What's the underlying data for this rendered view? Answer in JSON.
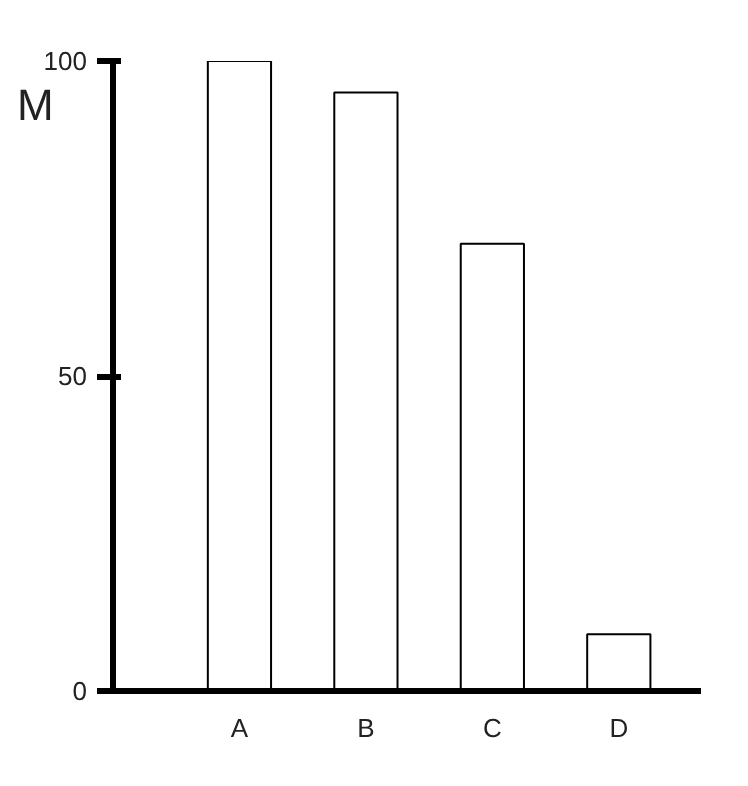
{
  "chart_data": {
    "type": "bar",
    "ylabel": "M",
    "categories": [
      "A",
      "B",
      "C",
      "D"
    ],
    "values": [
      100,
      95,
      71,
      9
    ],
    "color": "#ffffff",
    "ylim": [
      0,
      100
    ],
    "yticks": [
      0,
      50,
      100
    ],
    "grid": false
  }
}
